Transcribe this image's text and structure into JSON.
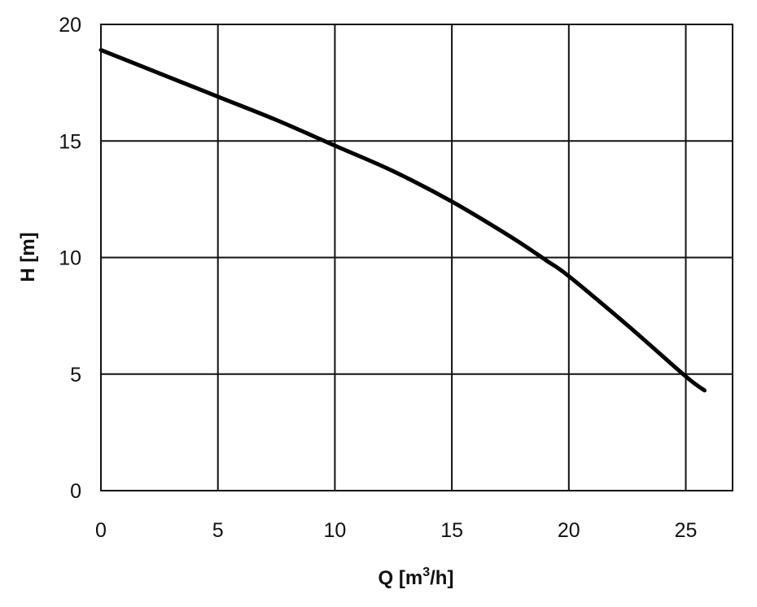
{
  "chart_data": {
    "type": "line",
    "title": "",
    "xlabel": {
      "prefix": "Q [m",
      "sup": "3",
      "suffix": "/h]"
    },
    "ylabel": "H [m]",
    "xlim": [
      0,
      27
    ],
    "ylim": [
      0,
      20
    ],
    "xticks": [
      0,
      5,
      10,
      15,
      20,
      25
    ],
    "yticks": [
      0,
      5,
      10,
      15,
      20
    ],
    "xtick_labels": [
      "0",
      "5",
      "10",
      "15",
      "20",
      "25"
    ],
    "ytick_labels": [
      "0",
      "5",
      "10",
      "15",
      "20"
    ],
    "grid": true,
    "legend": "none",
    "series": [
      {
        "color": "#000000",
        "x": [
          0,
          2.5,
          5,
          7.5,
          10,
          12.5,
          15,
          17.5,
          19,
          20,
          22.5,
          25,
          25.8
        ],
        "y": [
          18.9,
          17.9,
          16.9,
          15.9,
          14.8,
          13.7,
          12.4,
          10.9,
          9.9,
          9.2,
          7.1,
          4.9,
          4.3
        ]
      }
    ]
  }
}
